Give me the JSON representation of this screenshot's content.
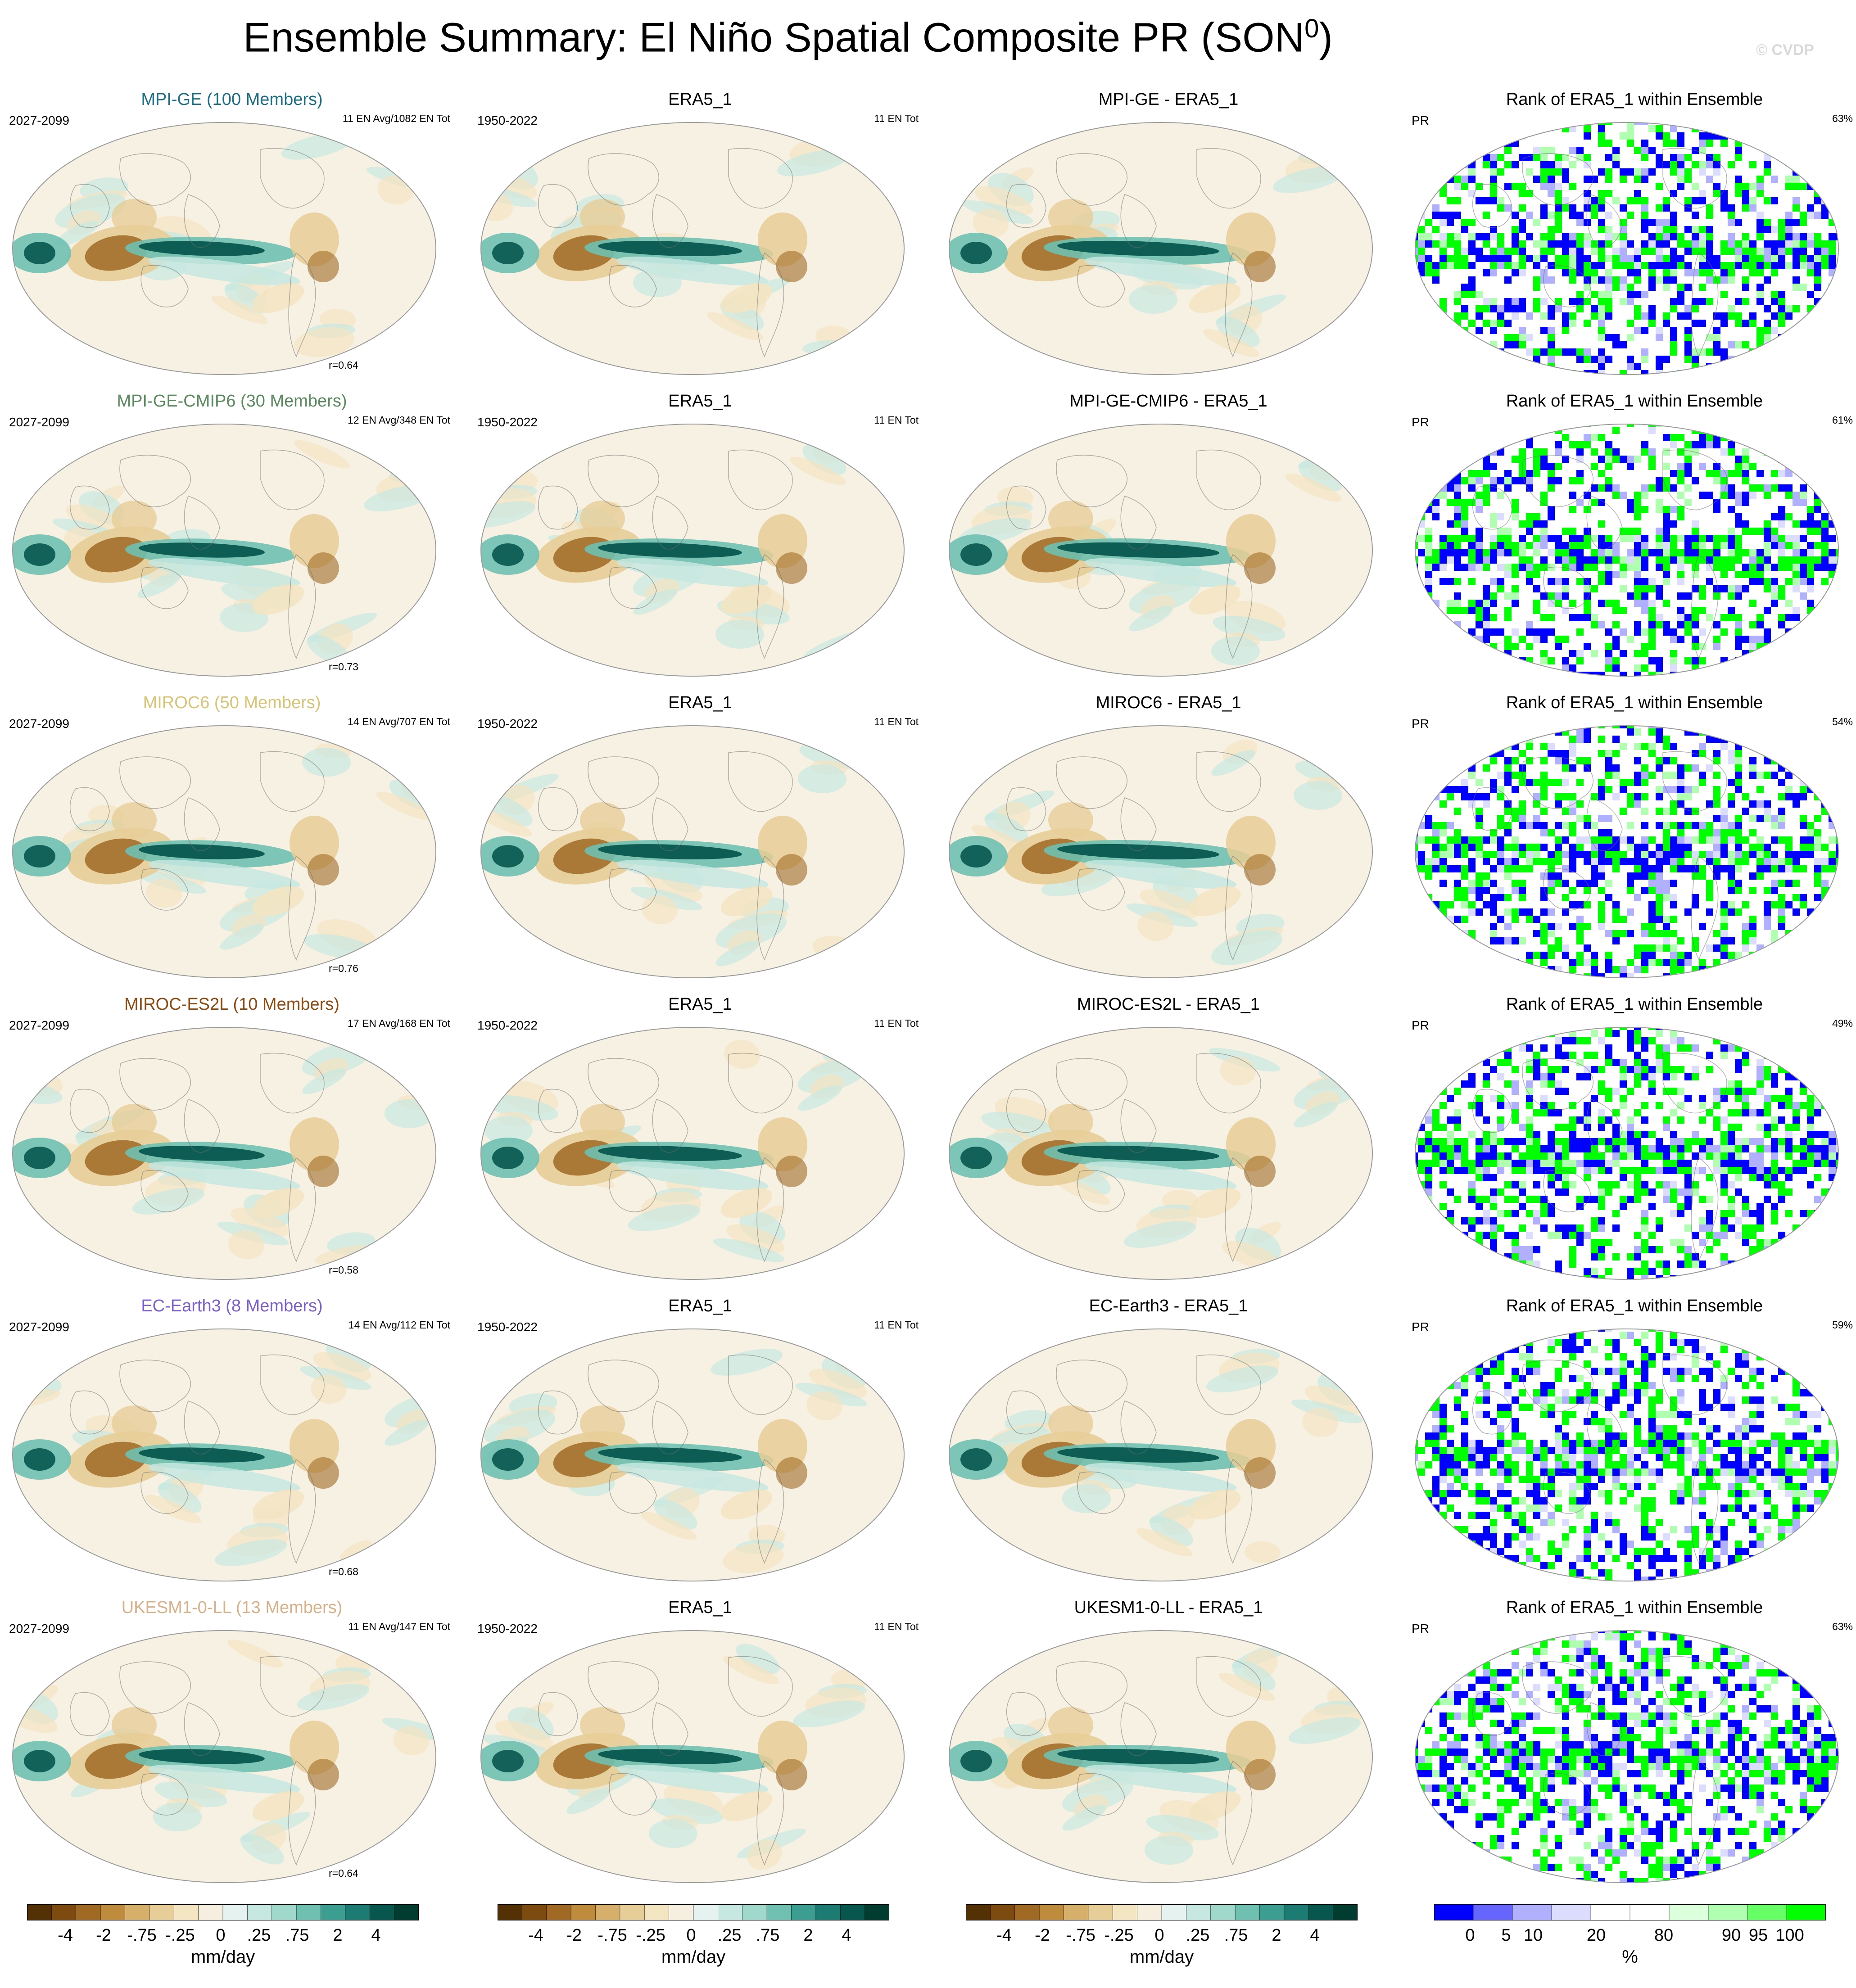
{
  "title": "Ensemble Summary: El Niño Spatial Composite PR (SON",
  "title_sup": "0",
  "title_close": ")",
  "watermark": "© CVDP",
  "colors": {
    "model_titles": [
      "#1d6e84",
      "#5b8a60",
      "#d8c476",
      "#8a4a12",
      "#7a5fc8",
      "#d6b088"
    ],
    "diverging": [
      "#543005",
      "#7d4a0f",
      "#a06a25",
      "#bf8b3d",
      "#d6b06a",
      "#e7cd97",
      "#f3e4c2",
      "#f6efe0",
      "#e5f2ef",
      "#c7e8e1",
      "#a0d8cc",
      "#6fc0b1",
      "#3c9e91",
      "#1c7b72",
      "#08574f",
      "#003c30"
    ],
    "rank": [
      "#0000ff",
      "#6666ff",
      "#b0b0ff",
      "#dcdcff",
      "#ffffff",
      "#ffffff",
      "#dcffdc",
      "#b0ffb0",
      "#66ff66",
      "#00ff00"
    ]
  },
  "rows": [
    {
      "model": {
        "title": "MPI-GE (100 Members)",
        "period": "2027-2099",
        "events": "11 EN Avg/1082 EN Tot",
        "corr": "r=0.64"
      },
      "obs": {
        "title": "ERA5_1",
        "period": "1950-2022",
        "events": "11 EN Tot"
      },
      "diff": {
        "title": "MPI-GE - ERA5_1"
      },
      "rank": {
        "title": "Rank of ERA5_1 within Ensemble",
        "var": "PR",
        "pct": "63%"
      }
    },
    {
      "model": {
        "title": "MPI-GE-CMIP6 (30 Members)",
        "period": "2027-2099",
        "events": "12 EN Avg/348 EN Tot",
        "corr": "r=0.73"
      },
      "obs": {
        "title": "ERA5_1",
        "period": "1950-2022",
        "events": "11 EN Tot"
      },
      "diff": {
        "title": "MPI-GE-CMIP6 - ERA5_1"
      },
      "rank": {
        "title": "Rank of ERA5_1 within Ensemble",
        "var": "PR",
        "pct": "61%"
      }
    },
    {
      "model": {
        "title": "MIROC6 (50 Members)",
        "period": "2027-2099",
        "events": "14 EN Avg/707 EN Tot",
        "corr": "r=0.76"
      },
      "obs": {
        "title": "ERA5_1",
        "period": "1950-2022",
        "events": "11 EN Tot"
      },
      "diff": {
        "title": "MIROC6 - ERA5_1"
      },
      "rank": {
        "title": "Rank of ERA5_1 within Ensemble",
        "var": "PR",
        "pct": "54%"
      }
    },
    {
      "model": {
        "title": "MIROC-ES2L (10 Members)",
        "period": "2027-2099",
        "events": "17 EN Avg/168 EN Tot",
        "corr": "r=0.58"
      },
      "obs": {
        "title": "ERA5_1",
        "period": "1950-2022",
        "events": "11 EN Tot"
      },
      "diff": {
        "title": "MIROC-ES2L - ERA5_1"
      },
      "rank": {
        "title": "Rank of ERA5_1 within Ensemble",
        "var": "PR",
        "pct": "49%"
      }
    },
    {
      "model": {
        "title": "EC-Earth3 (8 Members)",
        "period": "2027-2099",
        "events": "14 EN Avg/112 EN Tot",
        "corr": "r=0.68"
      },
      "obs": {
        "title": "ERA5_1",
        "period": "1950-2022",
        "events": "11 EN Tot"
      },
      "diff": {
        "title": "EC-Earth3 - ERA5_1"
      },
      "rank": {
        "title": "Rank of ERA5_1 within Ensemble",
        "var": "PR",
        "pct": "59%"
      }
    },
    {
      "model": {
        "title": "UKESM1-0-LL (13 Members)",
        "period": "2027-2099",
        "events": "11 EN Avg/147 EN Tot",
        "corr": "r=0.64"
      },
      "obs": {
        "title": "ERA5_1",
        "period": "1950-2022",
        "events": "11 EN Tot"
      },
      "diff": {
        "title": "UKESM1-0-LL - ERA5_1"
      },
      "rank": {
        "title": "Rank of ERA5_1 within Ensemble",
        "var": "PR",
        "pct": "63%"
      }
    }
  ],
  "colorbars": {
    "diverging": {
      "labels": [
        "-4",
        "-2",
        "-.75",
        "-.25",
        "0",
        ".25",
        ".75",
        "2",
        "4"
      ],
      "unit": "mm/day"
    },
    "rank": {
      "labels": [
        "0",
        "5",
        "10",
        "20",
        "80",
        "90",
        "95",
        "100"
      ],
      "unit": "%"
    }
  }
}
